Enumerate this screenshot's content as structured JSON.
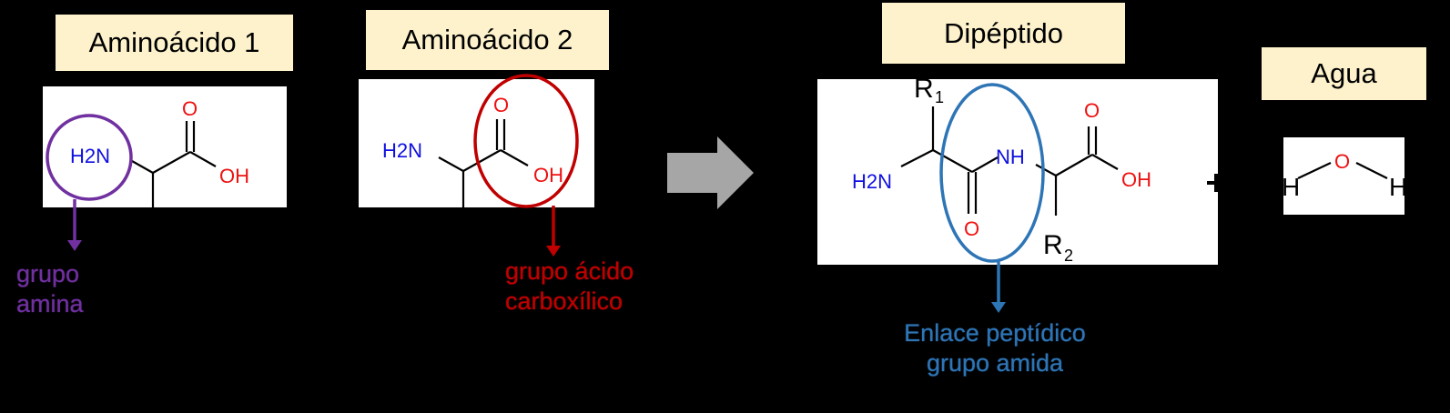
{
  "labels": {
    "aa1": "Aminoácido 1",
    "aa2": "Aminoácido 2",
    "dipeptide": "Dipéptido",
    "water": "Agua"
  },
  "atoms": {
    "h2n": "H2N",
    "oxygen": "O",
    "oh": "OH",
    "nh": "NH",
    "r": "R",
    "sub1": "1",
    "sub2": "2",
    "h": "H"
  },
  "captions": {
    "amine": [
      "grupo",
      "amina"
    ],
    "carboxylic": [
      "grupo ácido",
      "carboxílico"
    ],
    "peptide": [
      "Enlace peptídico",
      "grupo amida"
    ]
  },
  "colors": {
    "background": "#000000",
    "label_fill": "#fdf2cc",
    "amine": "#7030a0",
    "carboxylic": "#c00000",
    "peptide": "#2e75b6",
    "nitrogen": "#1010e0",
    "oxygen": "#ee1111",
    "arrow": "#a6a6a6"
  }
}
